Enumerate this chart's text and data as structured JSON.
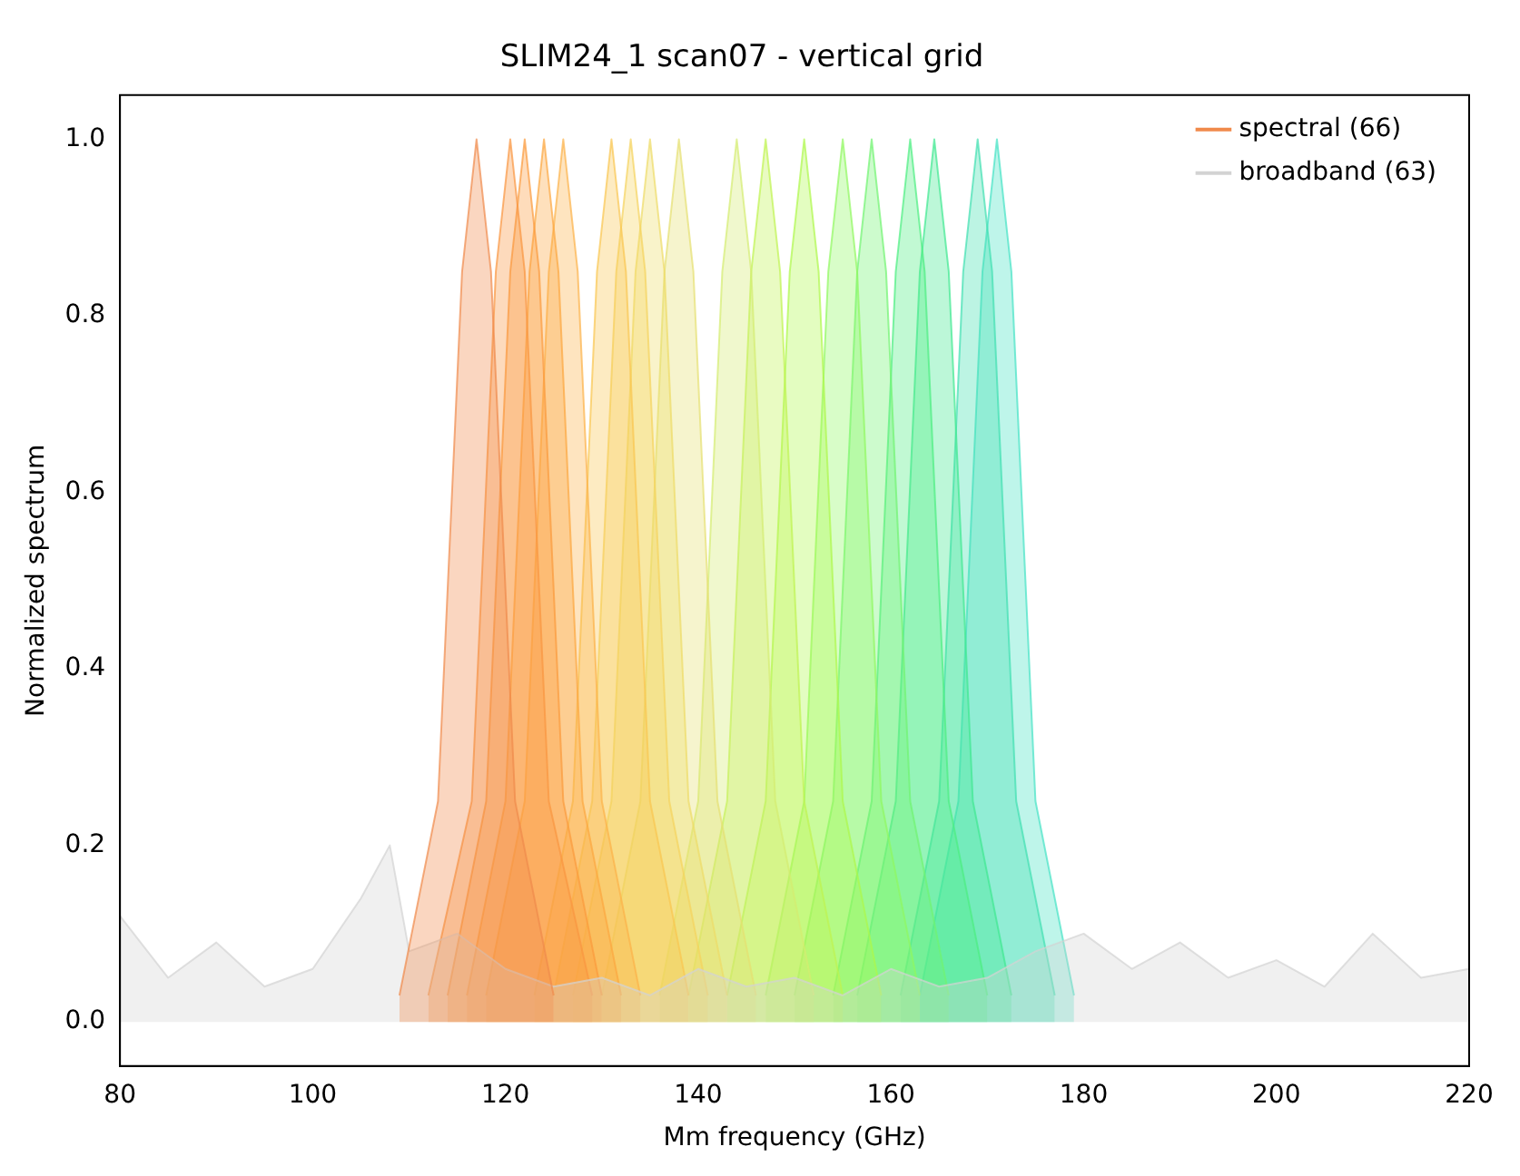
{
  "chart_data": {
    "type": "area",
    "title": "SLIM24_1 scan07 - vertical grid",
    "xlabel": "Mm frequency (GHz)",
    "ylabel": "Normalized spectrum",
    "xlim": [
      80,
      220
    ],
    "xticks": [
      80,
      100,
      120,
      140,
      160,
      180,
      200,
      220
    ],
    "ylim": [
      -0.05,
      1.05
    ],
    "yticks": [
      {
        "value": 0,
        "label": "0.0"
      },
      {
        "value": 0.2,
        "label": "0.2"
      },
      {
        "value": 0.4,
        "label": "0.4"
      },
      {
        "value": 0.6,
        "label": "0.6"
      },
      {
        "value": 0.8,
        "label": "0.8"
      },
      {
        "value": 1,
        "label": "1.0"
      }
    ],
    "legend": "top right",
    "marker": "none",
    "grid": false,
    "series": [
      {
        "name": "spectral (66)",
        "color": "#f08a4b",
        "x": [
          109,
          113,
          115.5,
          117,
          118.5,
          121,
          125
        ],
        "values": [
          0.03,
          0.25,
          0.85,
          1,
          0.85,
          0.25,
          0.03
        ]
      },
      {
        "name": "broadband (63)",
        "color": "#d3d3d3",
        "x": [
          80,
          85,
          90,
          95,
          100,
          105,
          108,
          110,
          115,
          120,
          125,
          130,
          135,
          140,
          145,
          150,
          155,
          160,
          165,
          170,
          175,
          180,
          185,
          190,
          195,
          200,
          205,
          210,
          215,
          220
        ],
        "values": [
          0.12,
          0.05,
          0.09,
          0.04,
          0.06,
          0.14,
          0.2,
          0.08,
          0.1,
          0.06,
          0.04,
          0.05,
          0.03,
          0.06,
          0.04,
          0.05,
          0.03,
          0.06,
          0.04,
          0.05,
          0.08,
          0.1,
          0.06,
          0.09,
          0.05,
          0.07,
          0.04,
          0.1,
          0.05,
          0.06
        ]
      },
      {
        "color": "#f99540",
        "x": [
          112,
          116.5,
          119,
          120.5,
          122,
          124.5,
          129
        ],
        "values": [
          0.03,
          0.25,
          0.85,
          1,
          0.85,
          0.25,
          0.03
        ]
      },
      {
        "color": "#fb9a3c",
        "x": [
          114,
          118,
          120.5,
          122,
          123.5,
          126,
          130
        ],
        "values": [
          0.03,
          0.25,
          0.85,
          1,
          0.85,
          0.25,
          0.03
        ]
      },
      {
        "color": "#fca63e",
        "x": [
          116,
          120,
          122.5,
          124,
          125.5,
          128,
          132
        ],
        "values": [
          0.03,
          0.25,
          0.85,
          1,
          0.85,
          0.25,
          0.03
        ]
      },
      {
        "color": "#fcb248",
        "x": [
          118,
          122,
          124.5,
          126,
          127.5,
          130,
          134
        ],
        "values": [
          0.03,
          0.25,
          0.85,
          1,
          0.85,
          0.25,
          0.03
        ]
      },
      {
        "color": "#f9c650",
        "x": [
          123,
          127,
          129.5,
          131,
          132.5,
          135,
          139
        ],
        "values": [
          0.03,
          0.25,
          0.85,
          1,
          0.85,
          0.25,
          0.03
        ]
      },
      {
        "color": "#f5d35c",
        "x": [
          125,
          129,
          131.5,
          133,
          134.5,
          137,
          141
        ],
        "values": [
          0.03,
          0.25,
          0.85,
          1,
          0.85,
          0.25,
          0.03
        ]
      },
      {
        "color": "#eedc66",
        "x": [
          127,
          131,
          133.5,
          135,
          136.5,
          139,
          143
        ],
        "values": [
          0.03,
          0.25,
          0.85,
          1,
          0.85,
          0.25,
          0.03
        ]
      },
      {
        "color": "#e5e070",
        "x": [
          130,
          134,
          136.5,
          138,
          139.5,
          142,
          146
        ],
        "values": [
          0.03,
          0.25,
          0.85,
          1,
          0.85,
          0.25,
          0.03
        ]
      },
      {
        "color": "#d4ec70",
        "x": [
          136,
          140,
          142.5,
          144,
          145.5,
          148,
          152
        ],
        "values": [
          0.03,
          0.25,
          0.85,
          1,
          0.85,
          0.25,
          0.03
        ]
      },
      {
        "color": "#bff450",
        "x": [
          139,
          143,
          145.5,
          147,
          148.5,
          151,
          155
        ],
        "values": [
          0.03,
          0.25,
          0.85,
          1,
          0.85,
          0.25,
          0.03
        ]
      },
      {
        "color": "#aef84a",
        "x": [
          143,
          147,
          149.5,
          151,
          152.5,
          155,
          159
        ],
        "values": [
          0.03,
          0.25,
          0.85,
          1,
          0.85,
          0.25,
          0.03
        ]
      },
      {
        "color": "#90f860",
        "x": [
          147,
          151,
          153.5,
          155,
          156.5,
          159,
          163
        ],
        "values": [
          0.03,
          0.25,
          0.85,
          1,
          0.85,
          0.25,
          0.03
        ]
      },
      {
        "color": "#70f470",
        "x": [
          150,
          154,
          156.5,
          158,
          159.5,
          162,
          166
        ],
        "values": [
          0.03,
          0.25,
          0.85,
          1,
          0.85,
          0.25,
          0.03
        ]
      },
      {
        "color": "#4cee80",
        "x": [
          154,
          158,
          160.5,
          162,
          163.5,
          166,
          170
        ],
        "values": [
          0.03,
          0.25,
          0.85,
          1,
          0.85,
          0.25,
          0.03
        ]
      },
      {
        "color": "#3ee890",
        "x": [
          156.5,
          160.5,
          163,
          164.5,
          166,
          168.5,
          172.5
        ],
        "values": [
          0.03,
          0.25,
          0.85,
          1,
          0.85,
          0.25,
          0.03
        ]
      },
      {
        "color": "#40e0b0",
        "x": [
          161,
          165,
          167.5,
          169,
          170.5,
          173,
          177
        ],
        "values": [
          0.03,
          0.25,
          0.85,
          1,
          0.85,
          0.25,
          0.03
        ]
      },
      {
        "color": "#44e2c4",
        "x": [
          163,
          167,
          169.5,
          171,
          172.5,
          175,
          179
        ],
        "values": [
          0.03,
          0.25,
          0.85,
          1,
          0.85,
          0.25,
          0.03
        ]
      }
    ]
  }
}
